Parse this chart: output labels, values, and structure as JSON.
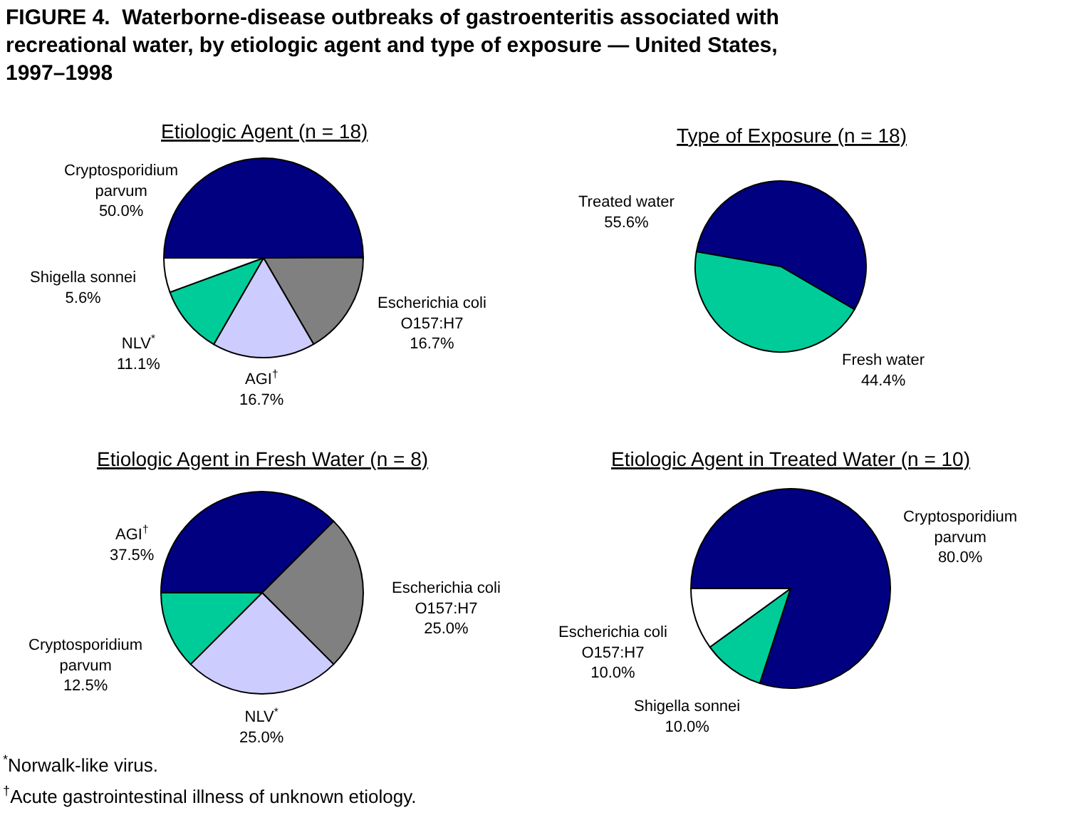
{
  "chart_data": [
    {
      "type": "other",
      "title": "FIGURE 4.  Waterborne-disease outbreaks of gastroenteritis associated with recreational water, by etiologic agent and type of exposure — United States, 1997–1998",
      "annotations": [
        "$^{*}$Norwalk-like virus.",
        "$^{†}$Acute gastrointestinal illness of unknown etiology."
      ]
    },
    {
      "type": "pie",
      "title": "Etiologic Agent (n = 18)",
      "categories": [
        "Cryptosporidium parvum",
        "Escherichia coli O157:H7",
        "AGI$^{†}$",
        "NLV$^{*}$",
        "Shigella sonnei"
      ],
      "values": [
        50.0,
        16.7,
        16.7,
        11.1,
        5.6
      ],
      "value_labels": [
        "50.0%",
        "16.7%",
        "16.7%",
        "11.1%",
        "5.6%"
      ],
      "colors": [
        "#000080",
        "#808080",
        "#ccccff",
        "#00cc99",
        "#ffffff"
      ]
    },
    {
      "type": "pie",
      "title": "Type of Exposure (n = 18)",
      "categories": [
        "Treated water",
        "Fresh water"
      ],
      "values": [
        55.6,
        44.4
      ],
      "value_labels": [
        "55.6%",
        "44.4%"
      ],
      "colors": [
        "#000080",
        "#00cc99"
      ]
    },
    {
      "type": "pie",
      "title": "Etiologic Agent in Fresh Water (n = 8)",
      "categories": [
        "AGI$^{†}$",
        "Escherichia coli O157:H7",
        "NLV$^{*}$",
        "Cryptosporidium parvum"
      ],
      "values": [
        37.5,
        25.0,
        25.0,
        12.5
      ],
      "value_labels": [
        "37.5%",
        "25.0%",
        "25.0%",
        "12.5%"
      ],
      "colors": [
        "#000080",
        "#808080",
        "#ccccff",
        "#00cc99"
      ]
    },
    {
      "type": "pie",
      "title": "Etiologic Agent in Treated Water (n = 10)",
      "categories": [
        "Cryptosporidium parvum",
        "Shigella sonnei",
        "Escherichia coli O157:H7"
      ],
      "values": [
        80.0,
        10.0,
        10.0
      ],
      "value_labels": [
        "80.0%",
        "10.0%",
        "10.0%"
      ],
      "colors": [
        "#000080",
        "#00cc99",
        "#ffffff"
      ]
    }
  ]
}
